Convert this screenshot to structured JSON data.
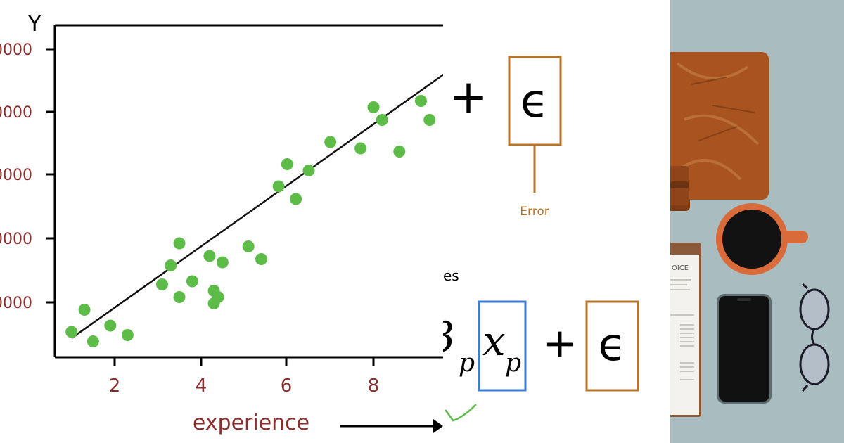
{
  "plot": {
    "y_axis_letter": "Y",
    "x_axis_label": "experience",
    "x_ticks": [
      "2",
      "4",
      "6",
      "8"
    ],
    "y_ticks_partial": [
      "0000",
      "0000",
      "0000",
      "0000",
      "0000"
    ],
    "colors": {
      "points": "#5dbb48",
      "ticks": "#8b2e2e",
      "axis": "#000000",
      "fit_line": "#111111"
    }
  },
  "chart_data": {
    "type": "scatter",
    "xlabel": "experience",
    "ylabel": "Y",
    "x_ticks": [
      2,
      4,
      6,
      8
    ],
    "xlim": [
      0.8,
      9.4
    ],
    "ylim": [
      0,
      5
    ],
    "points": [
      [
        1.0,
        0.4
      ],
      [
        1.3,
        0.75
      ],
      [
        1.5,
        0.25
      ],
      [
        1.9,
        0.5
      ],
      [
        2.3,
        0.35
      ],
      [
        3.1,
        1.15
      ],
      [
        3.3,
        1.45
      ],
      [
        3.5,
        1.8
      ],
      [
        3.5,
        0.95
      ],
      [
        3.8,
        1.2
      ],
      [
        4.2,
        1.6
      ],
      [
        4.3,
        0.85
      ],
      [
        4.3,
        1.05
      ],
      [
        4.4,
        0.95
      ],
      [
        4.5,
        1.5
      ],
      [
        5.1,
        1.75
      ],
      [
        5.4,
        1.55
      ],
      [
        5.8,
        2.7
      ],
      [
        6.0,
        3.05
      ],
      [
        6.2,
        2.5
      ],
      [
        6.5,
        2.95
      ],
      [
        7.0,
        3.4
      ],
      [
        7.7,
        3.3
      ],
      [
        8.0,
        3.95
      ],
      [
        8.2,
        3.75
      ],
      [
        8.6,
        3.25
      ],
      [
        9.1,
        4.05
      ],
      [
        9.3,
        3.75
      ]
    ],
    "fit_line": {
      "x": [
        1.0,
        9.9
      ],
      "y": [
        0.3,
        4.6
      ]
    }
  },
  "formula": {
    "top_plus": "+",
    "top_epsilon": "ϵ",
    "error_label": "Error",
    "partial_text": "es",
    "beta_fragment": "β",
    "beta_subscript": "p",
    "x_variable": "x",
    "x_subscript": "p",
    "bottom_plus": "+",
    "bottom_epsilon": "ϵ",
    "colors": {
      "error_box": "#b8752a",
      "x_box": "#3b7dd8",
      "check": "#5dbb48"
    }
  },
  "photo": {
    "invoice_header": "OICE",
    "colors": {
      "background": "#a9bcbf",
      "notebook": "#a9541f",
      "mug": "#d96a3a",
      "phone": "#111111",
      "glasses": "#1d1b2a"
    }
  }
}
